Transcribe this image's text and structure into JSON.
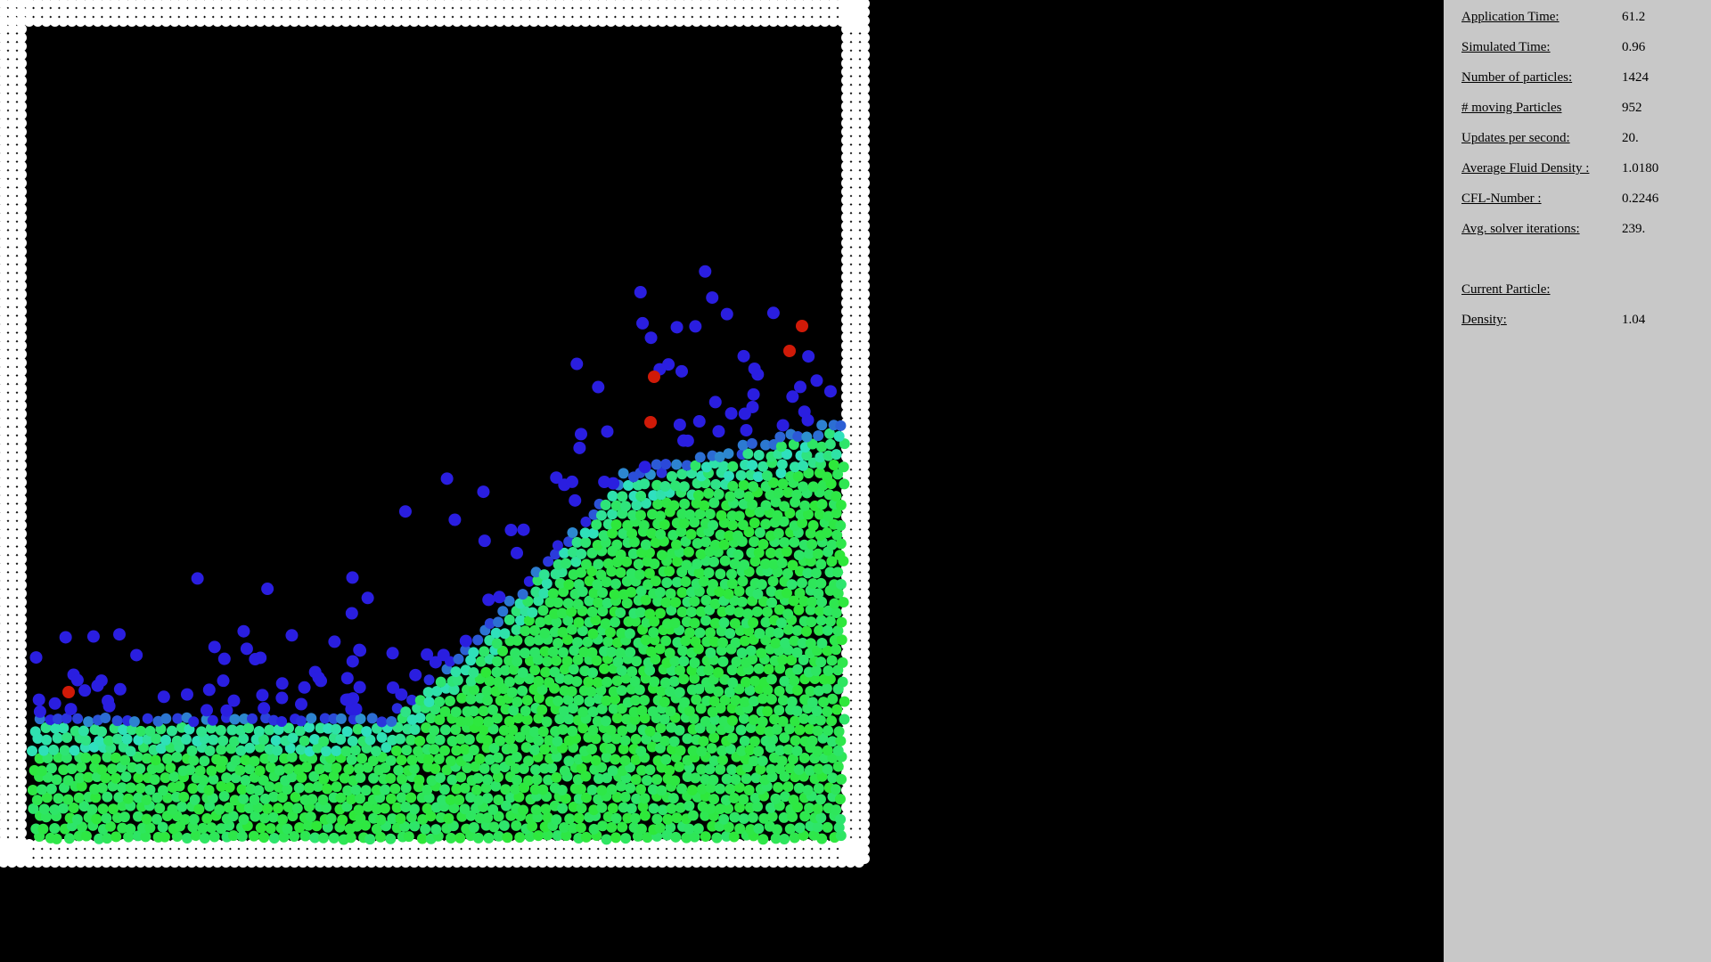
{
  "stats": [
    {
      "label": "Application Time:",
      "value": "61.2"
    },
    {
      "label": "Simulated Time:",
      "value": "0.96"
    },
    {
      "label": "Number of particles:",
      "value": "1424"
    },
    {
      "label": "# moving Particles",
      "value": "952"
    },
    {
      "label": "Updates per second:",
      "value": "20."
    },
    {
      "label": "Average Fluid Density :",
      "value": "1.0180"
    },
    {
      "label": "CFL-Number :",
      "value": "0.2246"
    },
    {
      "label": "Avg. solver iterations:",
      "value": "239."
    }
  ],
  "current_particle": {
    "heading": "Current Particle:",
    "density_label": "Density:",
    "density_value": "1.04"
  },
  "colors": {
    "boundary": "#ffffff",
    "panel_bg": "#c8c8c8",
    "low_density": "#2a1ee0",
    "mid_density": "#2fe0c0",
    "normal_density": "#2ee838",
    "high_density": "#d01a08"
  }
}
